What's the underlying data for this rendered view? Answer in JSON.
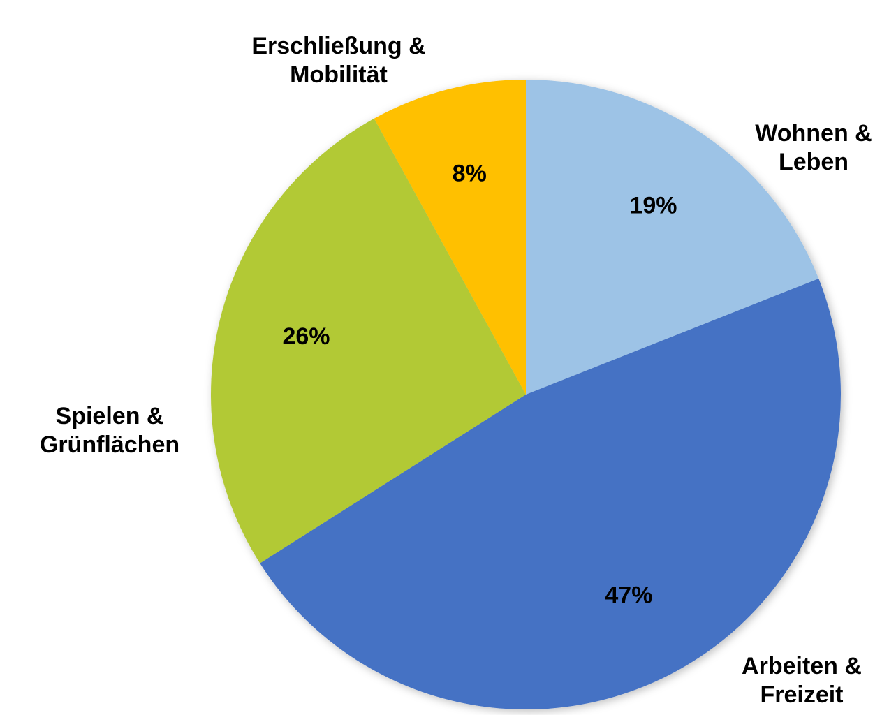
{
  "chart_data": {
    "type": "pie",
    "categories": [
      "Wohnen & Leben",
      "Arbeiten & Freizeit",
      "Spielen & Grünflächen",
      "Erschließung & Mobilität"
    ],
    "values": [
      19,
      47,
      26,
      8
    ],
    "value_labels": [
      "19%",
      "47%",
      "26%",
      "8%"
    ],
    "colors": [
      "#9dc3e6",
      "#4472c4",
      "#b2c935",
      "#ffc000"
    ]
  }
}
